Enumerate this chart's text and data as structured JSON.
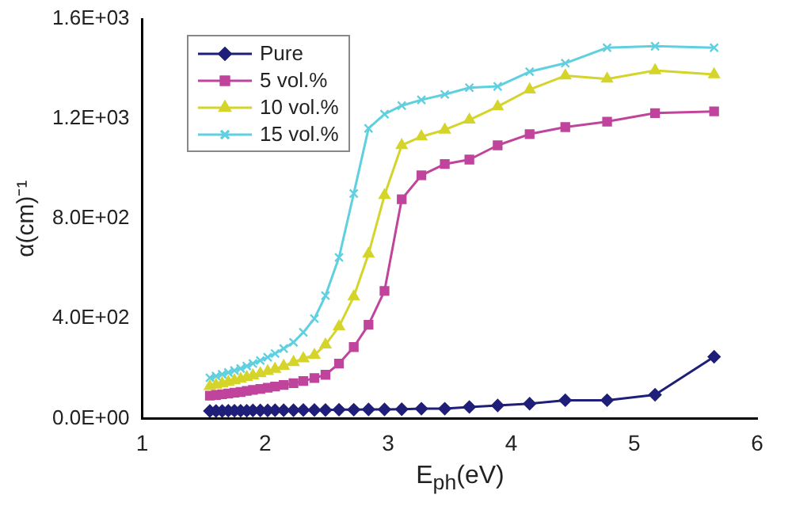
{
  "chart_data": {
    "type": "line",
    "xlabel": "E$_{ph}$(eV)",
    "ylabel": "α(cm)⁻¹",
    "x": [
      1.55,
      1.6,
      1.65,
      1.7,
      1.75,
      1.8,
      1.85,
      1.9,
      1.96,
      2.02,
      2.08,
      2.15,
      2.23,
      2.31,
      2.4,
      2.49,
      2.6,
      2.72,
      2.84,
      2.97,
      3.11,
      3.27,
      3.46,
      3.66,
      3.89,
      4.15,
      4.44,
      4.78,
      5.17,
      5.65
    ],
    "series": [
      {
        "name": "Pure",
        "color": "#1f1f7a",
        "marker": "diamond",
        "values": [
          30,
          30,
          30,
          31,
          31,
          31,
          31,
          32,
          32,
          32,
          33,
          33,
          33,
          34,
          34,
          34,
          35,
          35,
          36,
          36,
          37,
          39,
          39,
          46,
          52,
          59,
          73,
          73,
          95,
          247
        ]
      },
      {
        "name": "5 vol.%",
        "color": "#c0449c",
        "marker": "square",
        "values": [
          91,
          94,
          97,
          100,
          103,
          106,
          110,
          114,
          118,
          123,
          128,
          134,
          141,
          150,
          162,
          175,
          220,
          286,
          375,
          511,
          878,
          974,
          1019,
          1037,
          1094,
          1139,
          1167,
          1189,
          1223,
          1230
        ]
      },
      {
        "name": "10 vol.%",
        "color": "#d4d42a",
        "marker": "triangle",
        "values": [
          129,
          134,
          140,
          146,
          152,
          158,
          165,
          172,
          180,
          189,
          198,
          210,
          225,
          240,
          254,
          295,
          368,
          488,
          659,
          894,
          1094,
          1129,
          1156,
          1196,
          1249,
          1317,
          1373,
          1360,
          1394,
          1378
        ]
      },
      {
        "name": "15 vol.%",
        "color": "#5fd0e0",
        "marker": "cross",
        "values": [
          163,
          170,
          177,
          184,
          192,
          200,
          210,
          220,
          232,
          245,
          260,
          280,
          305,
          345,
          400,
          492,
          645,
          901,
          1162,
          1219,
          1253,
          1276,
          1298,
          1325,
          1330,
          1389,
          1423,
          1485,
          1491,
          1485
        ]
      }
    ],
    "xlim": [
      1,
      6
    ],
    "xticks": [
      1,
      2,
      3,
      4,
      5,
      6
    ],
    "ylim": [
      0,
      1600
    ],
    "yticks": [
      {
        "value": 0,
        "label": "0.0E+00"
      },
      {
        "value": 400,
        "label": "4.0E+02"
      },
      {
        "value": 800,
        "label": "8.0E+02"
      },
      {
        "value": 1200,
        "label": "1.2E+03"
      },
      {
        "value": 1600,
        "label": "1.6E+03"
      }
    ],
    "grid": false,
    "legend": "top left",
    "line_style": "solid"
  }
}
